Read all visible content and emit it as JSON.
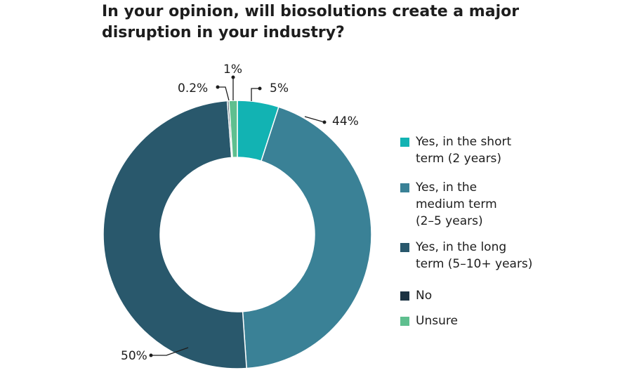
{
  "chart_data": {
    "type": "pie",
    "title": "In your opinion, will biosolutions create a major disruption in your industry?",
    "title_lines": [
      "In your opinion, will biosolutions create a major",
      "disruption in your industry?"
    ],
    "categories": [
      "Yes, in the short term (2 years)",
      "Yes, in the medium term (2–5 years)",
      "Yes, in the long term (5–10+ years)",
      "No",
      "Unsure"
    ],
    "values": [
      5,
      44,
      50,
      0.2,
      1
    ],
    "labels": [
      "5%",
      "44%",
      "50%",
      "0.2%",
      "1%"
    ],
    "colors": [
      "#12b3b3",
      "#3a8196",
      "#29586c",
      "#1b3242",
      "#5fbf8f"
    ],
    "legend_lines": [
      [
        "Yes, in the short",
        "term (2 years)"
      ],
      [
        "Yes, in the",
        "medium term",
        "(2–5 years)"
      ],
      [
        "Yes, in the long",
        "term (5–10+ years)"
      ],
      [
        "No"
      ],
      [
        "Unsure"
      ]
    ],
    "legend_position": "right"
  }
}
